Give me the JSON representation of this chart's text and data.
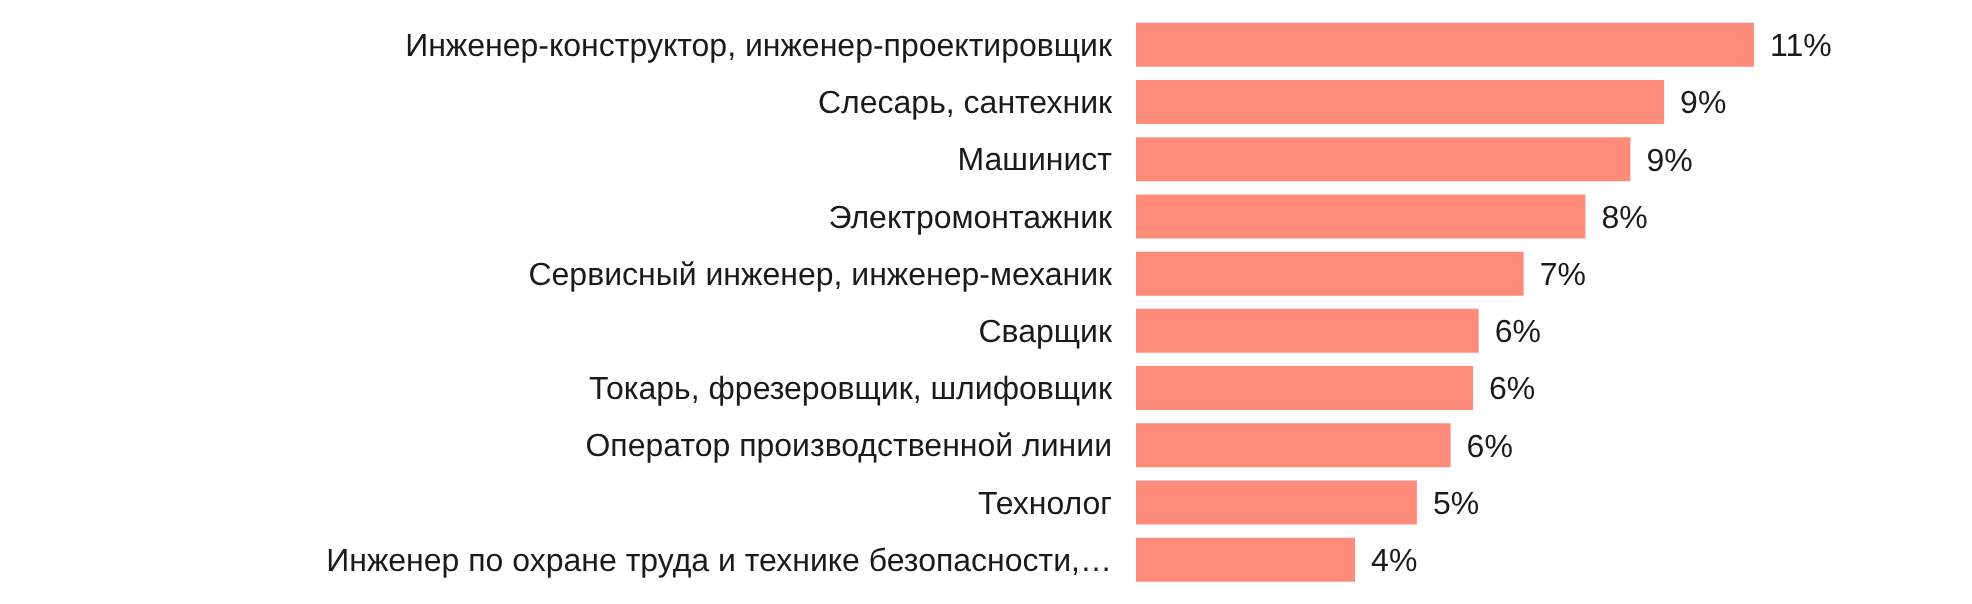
{
  "chart_data": {
    "type": "bar",
    "orientation": "horizontal",
    "categories": [
      "Инженер-конструктор, инженер-проектировщик",
      "Слесарь, сантехник",
      "Машинист",
      "Электромонтажник",
      "Сервисный инженер, инженер-механик",
      "Сварщик",
      "Токарь, фрезеровщик, шлифовщик",
      "Оператор производственной линии",
      "Технолог",
      "Инженер по охране труда и технике безопасности,…"
    ],
    "values": [
      11,
      9.4,
      8.8,
      8.0,
      6.9,
      6.1,
      6.0,
      5.6,
      5.0,
      3.9
    ],
    "value_labels": [
      "11%",
      "9%",
      "9%",
      "8%",
      "7%",
      "6%",
      "6%",
      "6%",
      "5%",
      "4%"
    ],
    "color": "#ff8b7b"
  }
}
